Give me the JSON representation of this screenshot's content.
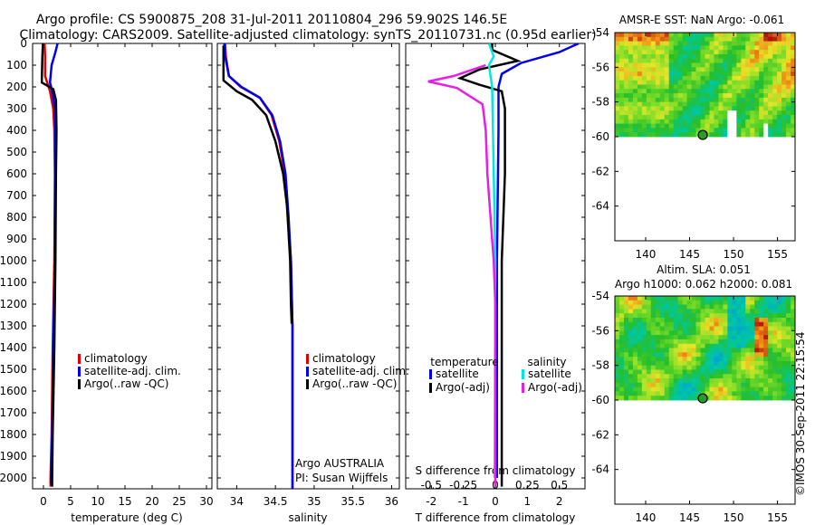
{
  "title_line1": "Argo profile: CS 5900875_208 31-Jul-2011 20110804_296 59.902S 146.5E",
  "title_line2": "Climatology: CARS2009. Satellite-adjusted climatology: synTS_20110731.nc (0.95d earlier)",
  "credit": "©IMOS 30-Sep-2011 22:15:54",
  "colors": {
    "red": "#e00000",
    "blue": "#0000ee",
    "black": "#000000",
    "cyan": "#00e6e6",
    "magenta": "#e61ee6"
  },
  "chart_data": [
    {
      "type": "line",
      "panel": "temperature",
      "xlabel": "temperature (deg C)",
      "ylabel": "",
      "xlim": [
        -2,
        31
      ],
      "ylim": [
        2050,
        0
      ],
      "y_reversed": true,
      "xticks": [
        0,
        5,
        10,
        15,
        20,
        25,
        30
      ],
      "xtick_labels": [
        "0",
        "5",
        "10",
        "15",
        "20",
        "25",
        "30"
      ],
      "yticks": [
        0,
        100,
        200,
        300,
        400,
        500,
        600,
        700,
        800,
        900,
        1000,
        1100,
        1200,
        1300,
        1400,
        1500,
        1600,
        1700,
        1800,
        1900,
        2000
      ],
      "ytick_labels": [
        "0",
        "100",
        "200",
        "300",
        "400",
        "500",
        "600",
        "700",
        "800",
        "900",
        "1000",
        "1100",
        "1200",
        "1300",
        "1400",
        "1500",
        "1600",
        "1700",
        "1800",
        "1900",
        "2000"
      ],
      "legend": [
        "climatology",
        "satellite-adj. clim.",
        "Argo(..raw -QC)"
      ],
      "series": [
        {
          "name": "climatology",
          "color": "red",
          "points": [
            [
              0.2,
              0
            ],
            [
              0.3,
              60
            ],
            [
              0.3,
              150
            ],
            [
              1.2,
              220
            ],
            [
              1.8,
              300
            ],
            [
              2.0,
              400
            ],
            [
              2.1,
              600
            ],
            [
              2.0,
              1000
            ],
            [
              1.7,
              1400
            ],
            [
              1.5,
              1800
            ],
            [
              1.3,
              2000
            ],
            [
              1.3,
              2040
            ]
          ]
        },
        {
          "name": "satellite-adj. clim.",
          "color": "blue",
          "points": [
            [
              2.6,
              0
            ],
            [
              2.2,
              40
            ],
            [
              1.5,
              100
            ],
            [
              1.2,
              180
            ],
            [
              1.6,
              220
            ],
            [
              2.1,
              300
            ],
            [
              2.2,
              400
            ],
            [
              2.2,
              600
            ],
            [
              2.1,
              1000
            ],
            [
              1.8,
              1400
            ],
            [
              1.6,
              1800
            ],
            [
              1.4,
              2000
            ],
            [
              1.4,
              2030
            ]
          ]
        },
        {
          "name": "Argo(..raw -QC)",
          "color": "black",
          "points": [
            [
              -0.1,
              0
            ],
            [
              -0.2,
              60
            ],
            [
              -0.3,
              160
            ],
            [
              -0.3,
              180
            ],
            [
              1.8,
              210
            ],
            [
              2.3,
              260
            ],
            [
              2.4,
              400
            ],
            [
              2.3,
              600
            ],
            [
              2.2,
              1000
            ],
            [
              2.0,
              1400
            ],
            [
              1.7,
              1800
            ],
            [
              1.6,
              2000
            ],
            [
              1.6,
              2040
            ]
          ]
        }
      ]
    },
    {
      "type": "line",
      "panel": "salinity",
      "xlabel": "salinity",
      "ylabel": "",
      "xlim": [
        33.75,
        36.1
      ],
      "ylim": [
        2050,
        0
      ],
      "y_reversed": true,
      "xticks": [
        34,
        34.5,
        35,
        35.5,
        36
      ],
      "xtick_labels": [
        "34",
        "34.5",
        "35",
        "35.5",
        "36"
      ],
      "legend": [
        "climatology",
        "satellite-adj. clim.",
        "Argo(..raw -QC)"
      ],
      "annotation": [
        "Argo AUSTRALIA",
        "PI: Susan Wijffels"
      ],
      "series": [
        {
          "name": "climatology",
          "color": "red",
          "points": [
            [
              33.85,
              0
            ],
            [
              33.86,
              60
            ],
            [
              33.9,
              150
            ],
            [
              34.05,
              200
            ],
            [
              34.3,
              250
            ],
            [
              34.45,
              330
            ],
            [
              34.55,
              450
            ],
            [
              34.62,
              600
            ],
            [
              34.66,
              800
            ],
            [
              34.7,
              1000
            ],
            [
              34.72,
              1300
            ],
            [
              34.72,
              1700
            ],
            [
              34.72,
              2050
            ]
          ]
        },
        {
          "name": "satellite-adj. clim.",
          "color": "blue",
          "points": [
            [
              33.84,
              0
            ],
            [
              33.85,
              60
            ],
            [
              33.9,
              150
            ],
            [
              34.06,
              200
            ],
            [
              34.3,
              250
            ],
            [
              34.46,
              330
            ],
            [
              34.56,
              450
            ],
            [
              34.63,
              600
            ],
            [
              34.67,
              800
            ],
            [
              34.7,
              1000
            ],
            [
              34.72,
              1300
            ],
            [
              34.72,
              1700
            ],
            [
              34.72,
              2050
            ]
          ]
        },
        {
          "name": "Argo(..raw -QC)",
          "color": "black",
          "points": [
            [
              33.83,
              10
            ],
            [
              33.83,
              80
            ],
            [
              33.83,
              170
            ],
            [
              34.0,
              220
            ],
            [
              34.2,
              260
            ],
            [
              34.38,
              330
            ],
            [
              34.5,
              450
            ],
            [
              34.6,
              600
            ],
            [
              34.65,
              750
            ],
            [
              34.69,
              1000
            ],
            [
              34.7,
              1200
            ],
            [
              34.71,
              1290
            ]
          ]
        }
      ]
    },
    {
      "type": "line",
      "panel": "difference",
      "xlabel": "T difference from climatology",
      "xlabel_top": "S difference from climatology",
      "xlim": [
        -2.8,
        2.8
      ],
      "ylim": [
        2050,
        0
      ],
      "y_reversed": true,
      "xticks": [
        -2,
        -1,
        0,
        1,
        2
      ],
      "xtick_labels": [
        "-2",
        "-1",
        "0",
        "1",
        "2"
      ],
      "sticks": [
        -0.5,
        -0.25,
        0,
        0.25,
        0.5
      ],
      "stick_labels": [
        "-0.5",
        "-0.25",
        "0",
        "0.25",
        "0.5"
      ],
      "legend_left_title": "temperature",
      "legend_right_title": "salinity",
      "legend": [
        "satellite",
        "Argo(-adj)",
        "satellite",
        "Argo(-adj)"
      ],
      "series": [
        {
          "name": "satellite",
          "color": "blue",
          "points": [
            [
              2.6,
              0
            ],
            [
              2.0,
              40
            ],
            [
              0.8,
              90
            ],
            [
              0.2,
              140
            ],
            [
              0.1,
              200
            ],
            [
              0.1,
              400
            ],
            [
              0.05,
              1000
            ],
            [
              0.05,
              2000
            ]
          ]
        },
        {
          "name": "Argo(-adj)",
          "color": "black",
          "points": [
            [
              -0.1,
              0
            ],
            [
              -0.1,
              30
            ],
            [
              0.7,
              80
            ],
            [
              -0.5,
              120
            ],
            [
              -1.1,
              160
            ],
            [
              -0.5,
              190
            ],
            [
              0.2,
              220
            ],
            [
              0.3,
              300
            ],
            [
              0.3,
              600
            ],
            [
              0.2,
              1000
            ],
            [
              0.2,
              1400
            ],
            [
              0.2,
              1800
            ],
            [
              0.2,
              2040
            ]
          ]
        },
        {
          "name": "satellite",
          "color": "cyan",
          "points": [
            [
              -0.2,
              0
            ],
            [
              -0.05,
              60
            ],
            [
              -0.2,
              100
            ],
            [
              -0.1,
              200
            ],
            [
              0.0,
              1000
            ],
            [
              -0.02,
              2000
            ]
          ]
        },
        {
          "name": "Argo(-adj)",
          "color": "magenta",
          "points": [
            [
              -0.3,
              100
            ],
            [
              -1.3,
              150
            ],
            [
              -2.1,
              175
            ],
            [
              -1.2,
              205
            ],
            [
              -0.4,
              280
            ],
            [
              -0.3,
              400
            ],
            [
              -0.25,
              600
            ],
            [
              -0.15,
              800
            ],
            [
              -0.05,
              1000
            ],
            [
              0.0,
              1200
            ],
            [
              0.0,
              2040
            ]
          ]
        }
      ]
    },
    {
      "type": "heatmap",
      "panel": "AMSR-E SST",
      "title": "AMSR-E SST: NaN Argo: -0.061",
      "xlim": [
        136.5,
        157
      ],
      "ylim": [
        -66,
        -54
      ],
      "xticks": [
        140,
        145,
        150,
        155
      ],
      "xtick_labels": [
        "140",
        "145",
        "150",
        "155"
      ],
      "yticks": [
        -54,
        -56,
        -58,
        -60,
        -62,
        -64
      ],
      "ytick_labels": [
        "-54",
        "-56",
        "-58",
        "-60",
        "-62",
        "-64"
      ],
      "marker": [
        146.5,
        -59.9
      ]
    },
    {
      "type": "heatmap",
      "panel": "Altim. SLA",
      "title_line1": "Altim. SLA: 0.051",
      "title_line2": "Argo h1000: 0.062 h2000: 0.081",
      "xlim": [
        136.5,
        157
      ],
      "ylim": [
        -66,
        -54
      ],
      "xticks": [
        140,
        145,
        150,
        155
      ],
      "xtick_labels": [
        "140",
        "145",
        "150",
        "155"
      ],
      "yticks": [
        -54,
        -56,
        -58,
        -60,
        -62,
        -64
      ],
      "ytick_labels": [
        "-54",
        "-56",
        "-58",
        "-60",
        "-62",
        "-64"
      ],
      "marker": [
        146.5,
        -59.9
      ]
    }
  ]
}
